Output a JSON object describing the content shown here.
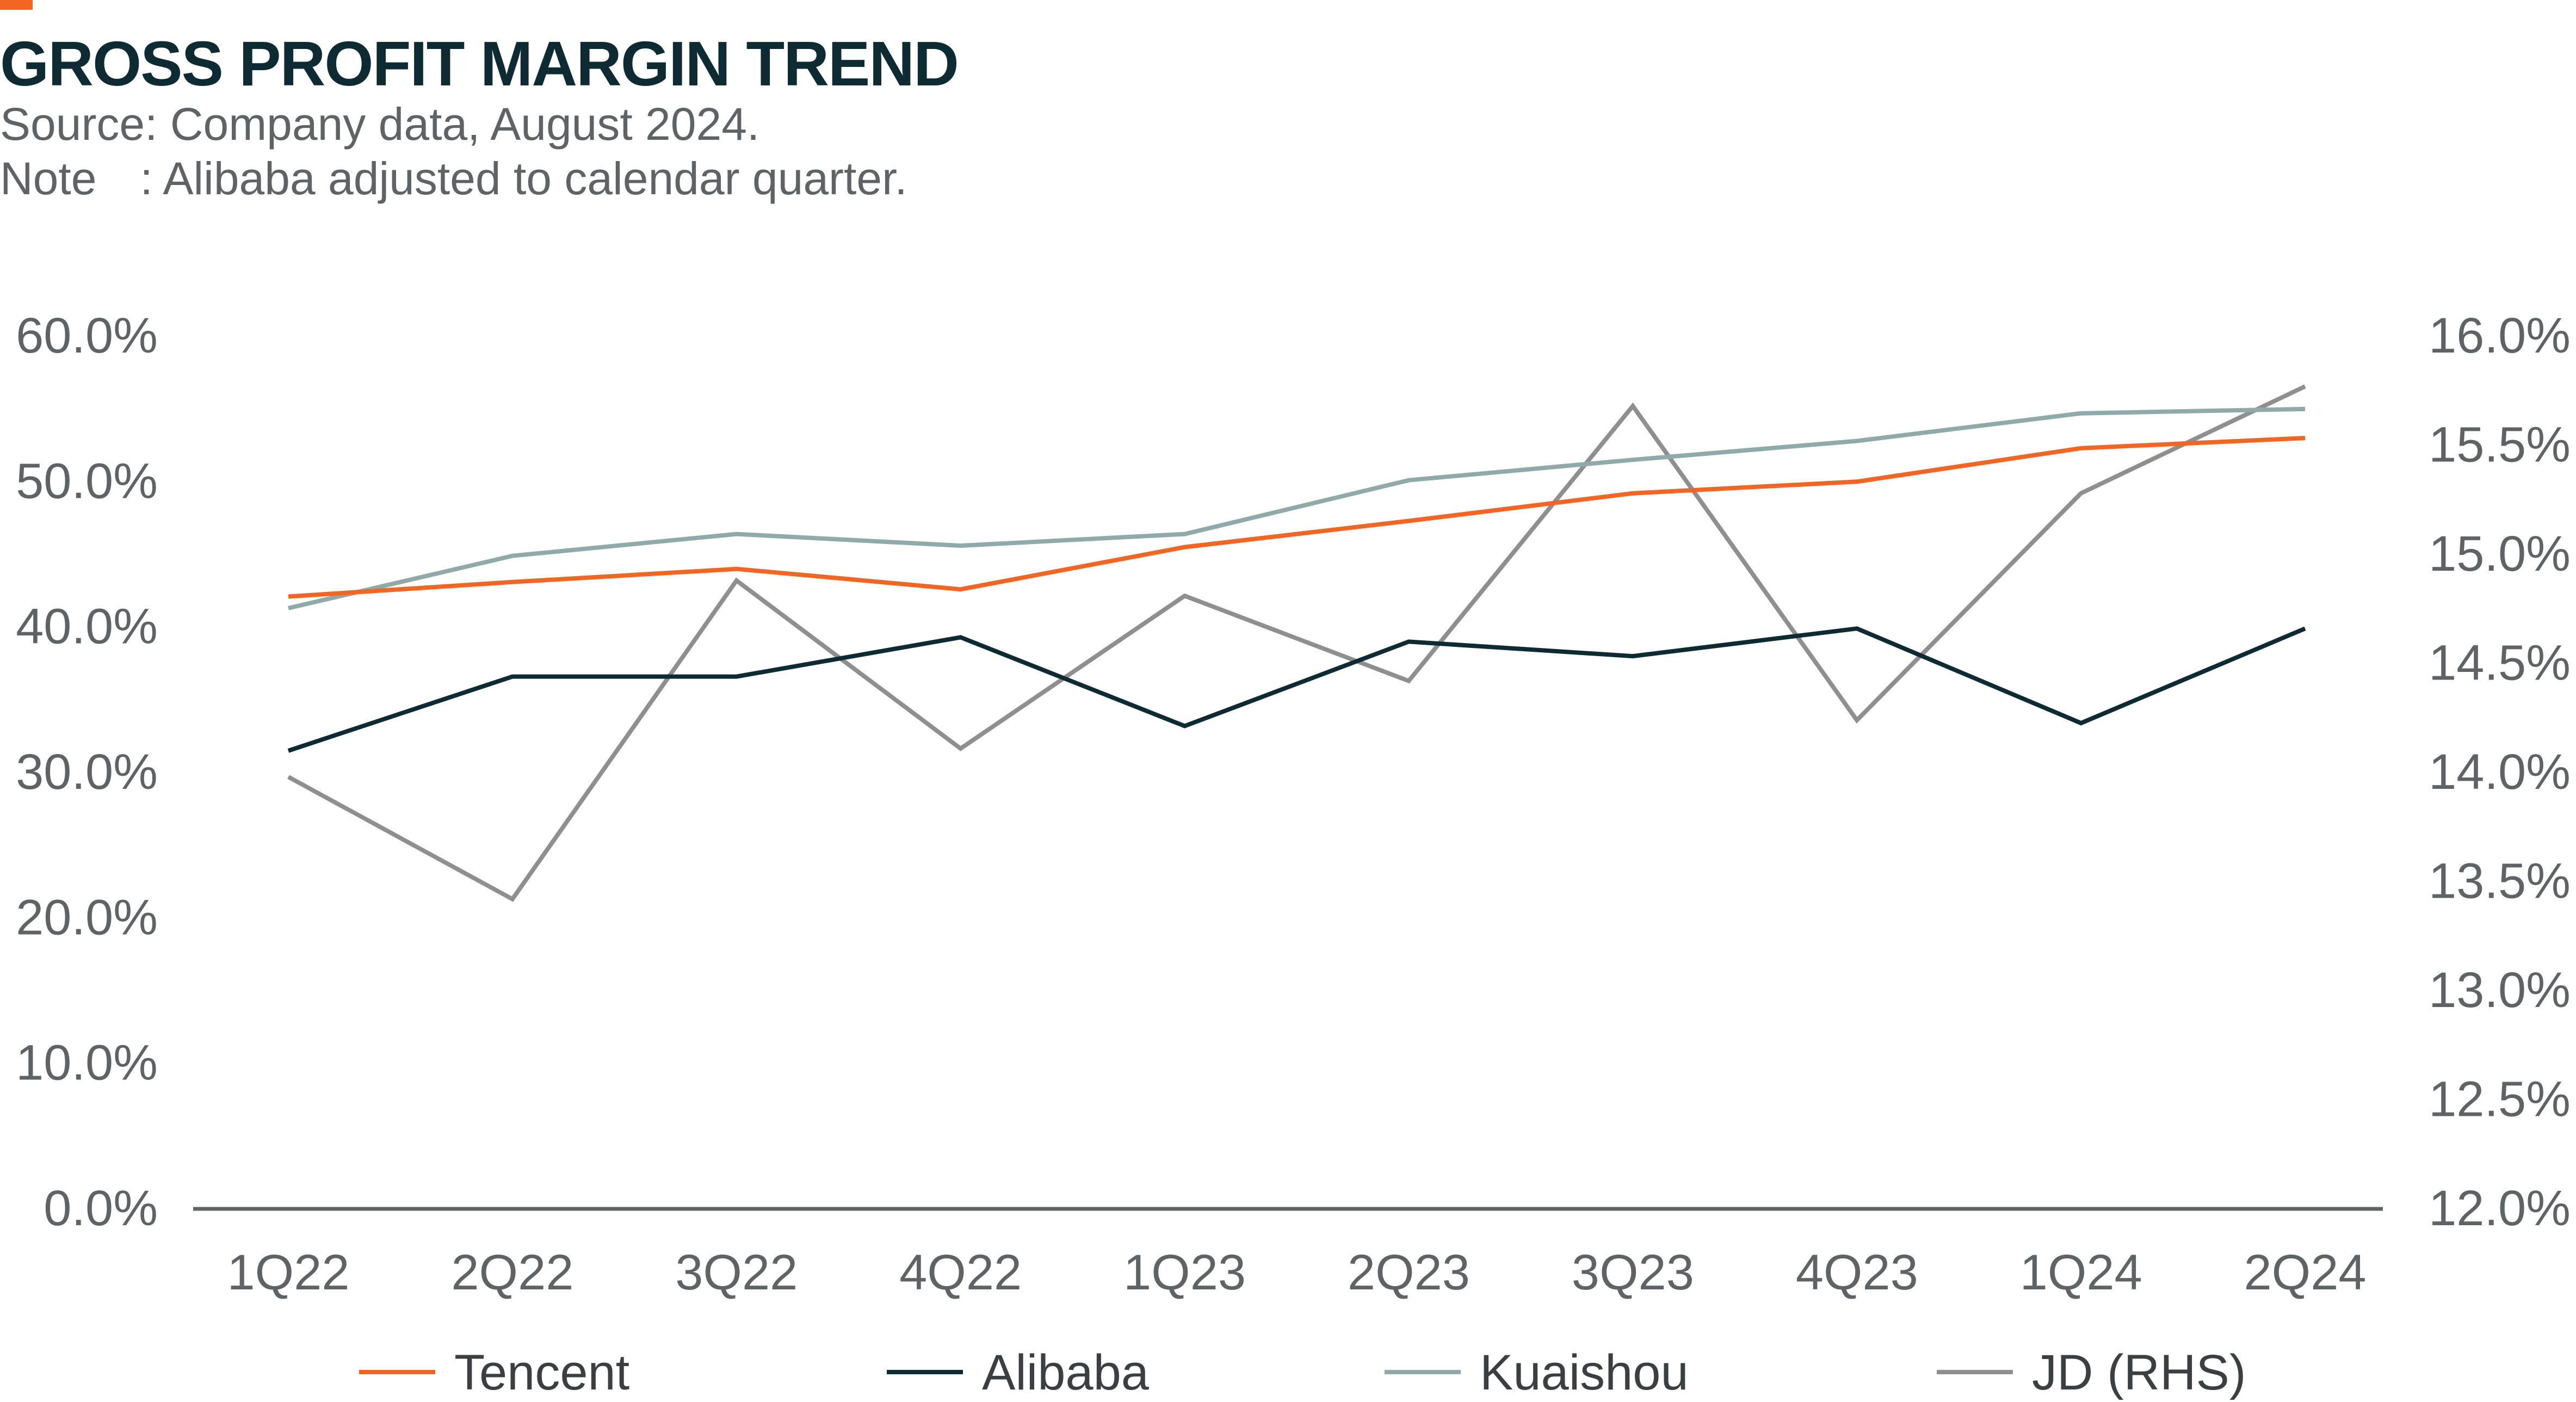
{
  "header": {
    "title": "GROSS PROFIT MARGIN TREND",
    "source": "Source: Company data, August 2024.",
    "note_label": "Note",
    "note_text": ": Alibaba adjusted to calendar quarter."
  },
  "colors": {
    "accent": "#f26522",
    "title": "#0e2a33",
    "axis": "#5f6366"
  },
  "chart_data": {
    "type": "line",
    "title": "GROSS PROFIT MARGIN TREND",
    "categories": [
      "1Q22",
      "2Q22",
      "3Q22",
      "4Q22",
      "1Q23",
      "2Q23",
      "3Q23",
      "4Q23",
      "1Q24",
      "2Q24"
    ],
    "y_left": {
      "range": [
        0,
        60
      ],
      "ticks": [
        0,
        10,
        20,
        30,
        40,
        50,
        60
      ],
      "tick_labels": [
        "0.0%",
        "10.0%",
        "20.0%",
        "30.0%",
        "40.0%",
        "50.0%",
        "60.0%"
      ]
    },
    "y_right": {
      "range": [
        12,
        16
      ],
      "ticks": [
        12,
        12.5,
        13,
        13.5,
        14,
        14.5,
        15,
        15.5,
        16
      ],
      "tick_labels": [
        "12.0%",
        "12.5%",
        "13.0%",
        "13.5%",
        "14.0%",
        "14.5%",
        "15.0%",
        "15.5%",
        "16.0%"
      ]
    },
    "grid": false,
    "legend_position": "bottom",
    "series": [
      {
        "name": "Tencent",
        "axis": "left",
        "color": "#f26522",
        "values": [
          42.1,
          43.1,
          44.0,
          42.6,
          45.5,
          47.3,
          49.2,
          50.0,
          52.3,
          53.0
        ]
      },
      {
        "name": "Alibaba",
        "axis": "left",
        "color": "#0e2a33",
        "values": [
          31.5,
          36.6,
          36.6,
          39.3,
          33.2,
          39.0,
          38.0,
          39.9,
          33.4,
          39.9
        ]
      },
      {
        "name": "Kuaishou",
        "axis": "left",
        "color": "#8faaa9",
        "values": [
          41.3,
          44.9,
          46.4,
          45.6,
          46.4,
          50.1,
          51.5,
          52.8,
          54.7,
          55.0
        ]
      },
      {
        "name": "JD (RHS)",
        "axis": "right",
        "color": "#8f8f8f",
        "values": [
          13.98,
          13.42,
          14.88,
          14.11,
          14.81,
          14.42,
          15.68,
          14.24,
          15.28,
          15.77
        ]
      }
    ]
  }
}
